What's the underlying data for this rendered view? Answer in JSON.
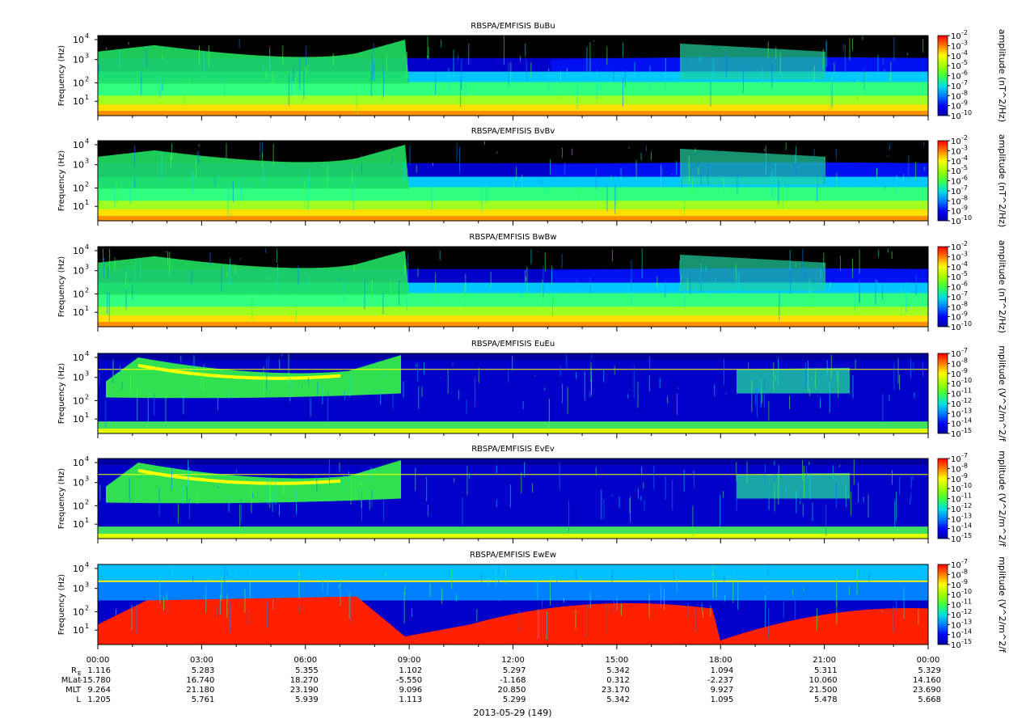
{
  "chart_data": {
    "type": "heatmap",
    "date_label": "2013-05-29 (149)",
    "time_ticks": [
      "00:00",
      "03:00",
      "06:00",
      "09:00",
      "12:00",
      "15:00",
      "18:00",
      "21:00",
      "00:00"
    ],
    "ephemeris": [
      {
        "label": "R",
        "sub": "E",
        "values": [
          "1.116",
          "5.283",
          "5.355",
          "1.102",
          "5.297",
          "5.342",
          "1.094",
          "5.311",
          "5.329"
        ]
      },
      {
        "label": "MLat",
        "sub": "",
        "values": [
          "-15.780",
          "16.740",
          "18.270",
          "-5.550",
          "-1.168",
          "0.312",
          "-2.237",
          "10.060",
          "14.160"
        ]
      },
      {
        "label": "MLT",
        "sub": "",
        "values": [
          "9.264",
          "21.180",
          "23.190",
          "9.096",
          "20.850",
          "23.170",
          "9.927",
          "21.500",
          "23.690"
        ]
      },
      {
        "label": "L",
        "sub": "",
        "values": [
          "1.205",
          "5.761",
          "5.939",
          "1.113",
          "5.299",
          "5.342",
          "1.095",
          "5.478",
          "5.668"
        ]
      }
    ],
    "panels": [
      {
        "title": "RBSPA/EMFISIS  BuBu",
        "ylabel": "Frequency (Hz)",
        "yticks": [
          "10",
          "10",
          "10",
          "10"
        ],
        "yexp": [
          "1",
          "2",
          "3",
          "4"
        ],
        "cbar_label": "amplitude (nT^2/Hz)",
        "cbar_ticks": [
          "10",
          "10",
          "10",
          "10",
          "10",
          "10",
          "10",
          "10",
          "10"
        ],
        "cbar_exp": [
          "-2",
          "-3",
          "-4",
          "-5",
          "-6",
          "-7",
          "-8",
          "-9",
          "-10"
        ],
        "component": "B"
      },
      {
        "title": "RBSPA/EMFISIS  BvBv",
        "ylabel": "Frequency (Hz)",
        "yticks": [
          "10",
          "10",
          "10",
          "10"
        ],
        "yexp": [
          "1",
          "2",
          "3",
          "4"
        ],
        "cbar_label": "amplitude (nT^2/Hz)",
        "cbar_ticks": [
          "10",
          "10",
          "10",
          "10",
          "10",
          "10",
          "10",
          "10",
          "10"
        ],
        "cbar_exp": [
          "-2",
          "-3",
          "-4",
          "-5",
          "-6",
          "-7",
          "-8",
          "-9",
          "-10"
        ],
        "component": "B"
      },
      {
        "title": "RBSPA/EMFISIS  BwBw",
        "ylabel": "Frequency (Hz)",
        "yticks": [
          "10",
          "10",
          "10",
          "10"
        ],
        "yexp": [
          "1",
          "2",
          "3",
          "4"
        ],
        "cbar_label": "amplitude (nT^2/Hz)",
        "cbar_ticks": [
          "10",
          "10",
          "10",
          "10",
          "10",
          "10",
          "10",
          "10",
          "10"
        ],
        "cbar_exp": [
          "-2",
          "-3",
          "-4",
          "-5",
          "-6",
          "-7",
          "-8",
          "-9",
          "-10"
        ],
        "component": "B"
      },
      {
        "title": "RBSPA/EMFISIS  EuEu",
        "ylabel": "Frequency (Hz)",
        "yticks": [
          "10",
          "10",
          "10",
          "10"
        ],
        "yexp": [
          "1",
          "2",
          "3",
          "4"
        ],
        "cbar_label": "mplitude (V^2/m^2/f",
        "cbar_ticks": [
          "10",
          "10",
          "10",
          "10",
          "10",
          "10",
          "10",
          "10",
          "10"
        ],
        "cbar_exp": [
          "-7",
          "-8",
          "-9",
          "-10",
          "-11",
          "-12",
          "-13",
          "-14",
          "-15"
        ],
        "component": "E"
      },
      {
        "title": "RBSPA/EMFISIS  EvEv",
        "ylabel": "Frequency (Hz)",
        "yticks": [
          "10",
          "10",
          "10",
          "10"
        ],
        "yexp": [
          "1",
          "2",
          "3",
          "4"
        ],
        "cbar_label": "mplitude (V^2/m^2/f",
        "cbar_ticks": [
          "10",
          "10",
          "10",
          "10",
          "10",
          "10",
          "10",
          "10",
          "10"
        ],
        "cbar_exp": [
          "-7",
          "-8",
          "-9",
          "-10",
          "-11",
          "-12",
          "-13",
          "-14",
          "-15"
        ],
        "component": "E"
      },
      {
        "title": "RBSPA/EMFISIS  EwEw",
        "ylabel": "Frequency (Hz)",
        "yticks": [
          "10",
          "10",
          "10",
          "10"
        ],
        "yexp": [
          "1",
          "2",
          "3",
          "4"
        ],
        "cbar_label": "mplitude (V^2/m^2/f",
        "cbar_ticks": [
          "10",
          "10",
          "10",
          "10",
          "10",
          "10",
          "10",
          "10",
          "10"
        ],
        "cbar_exp": [
          "-7",
          "-8",
          "-9",
          "-10",
          "-11",
          "-12",
          "-13",
          "-14",
          "-15"
        ],
        "component": "W"
      }
    ],
    "colorscale": [
      "#0000a0",
      "#0000ff",
      "#0080ff",
      "#00e0e0",
      "#40ff40",
      "#a0ff00",
      "#ffff00",
      "#ff8000",
      "#ff0000"
    ]
  }
}
